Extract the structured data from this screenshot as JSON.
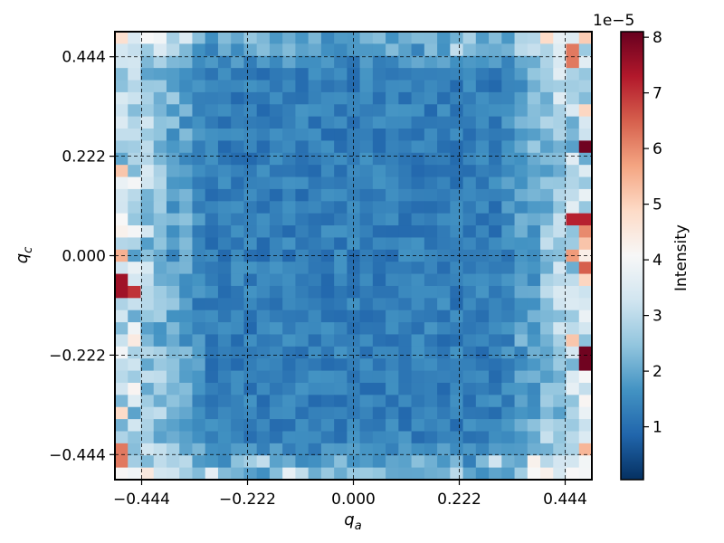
{
  "chart_data": {
    "type": "heatmap",
    "title": "",
    "xlabel": "q",
    "xlabel_sub": "a",
    "ylabel": "q",
    "ylabel_sub": "c",
    "x_ticks": [
      "−0.444",
      "−0.222",
      "0.000",
      "0.222",
      "0.444"
    ],
    "x_tick_values": [
      -0.444,
      -0.222,
      0.0,
      0.222,
      0.444
    ],
    "y_ticks": [
      "−0.444",
      "−0.222",
      "0.000",
      "0.222",
      "0.444"
    ],
    "y_tick_values": [
      -0.444,
      -0.222,
      0.0,
      0.222,
      0.444
    ],
    "xlim": [
      -0.5,
      0.5
    ],
    "ylim": [
      -0.5,
      0.5
    ],
    "grid": {
      "n": 37,
      "extent": [
        -0.5,
        0.5
      ]
    },
    "reference_lines_x": [
      -0.444,
      -0.222,
      0.0,
      0.222,
      0.444
    ],
    "reference_lines_y": [
      -0.444,
      -0.222,
      0.0,
      0.222,
      0.444
    ],
    "colormap": "RdBu_r",
    "colorbar": {
      "label": "Intensity",
      "offset_text": "1e−5",
      "range": [
        0.05,
        8.1
      ],
      "ticks": [
        "1",
        "2",
        "3",
        "4",
        "5",
        "6",
        "7",
        "8"
      ],
      "tick_values": [
        1,
        2,
        3,
        4,
        5,
        6,
        7,
        8
      ]
    },
    "hotspots": [
      {
        "x": 0.5,
        "y": 0.24,
        "value": 8.0
      },
      {
        "x": 0.5,
        "y": -0.23,
        "value": 8.0
      },
      {
        "x": 0.47,
        "y": 0.08,
        "value": 7.2
      },
      {
        "x": 0.5,
        "y": 0.05,
        "value": 6.0
      },
      {
        "x": 0.5,
        "y": -0.03,
        "value": 6.5
      },
      {
        "x": -0.49,
        "y": -0.07,
        "value": 7.5
      },
      {
        "x": -0.47,
        "y": -0.08,
        "value": 7.0
      },
      {
        "x": 0.46,
        "y": 0.44,
        "value": 6.2
      },
      {
        "x": -0.49,
        "y": -0.44,
        "value": 6.2
      },
      {
        "x": -0.49,
        "y": 0.0,
        "value": 5.5
      },
      {
        "x": 0.46,
        "y": 0.0,
        "value": 5.8
      },
      {
        "x": 0.46,
        "y": -0.19,
        "value": 5.2
      }
    ]
  }
}
